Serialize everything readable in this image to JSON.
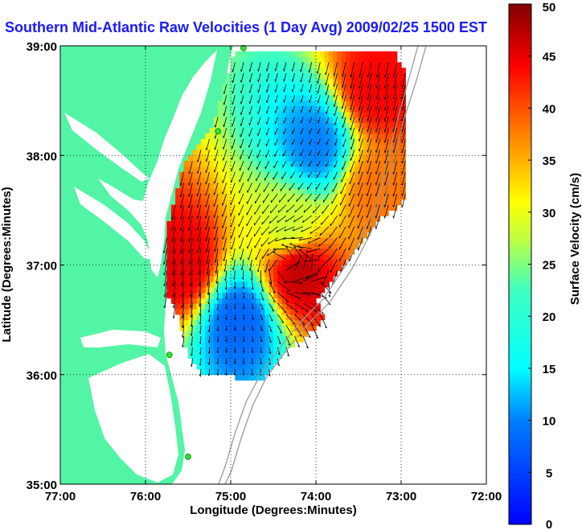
{
  "chart_data": {
    "type": "heatmap",
    "title": "Southern Mid-Atlantic Raw Velocities (1 Day Avg) 2009/02/25 1500 EST",
    "xlabel": "Longitude (Degrees:Minutes)",
    "ylabel": "Latitude (Degrees:Minutes)",
    "xlim": [
      -77,
      -72
    ],
    "ylim": [
      35,
      39
    ],
    "x_ticks": [
      -77,
      -76,
      -75,
      -74,
      -73,
      -72
    ],
    "x_tick_labels": [
      "77:00",
      "76:00",
      "75:00",
      "74:00",
      "73:00",
      "72:00"
    ],
    "y_ticks": [
      35,
      36,
      37,
      38,
      39
    ],
    "y_tick_labels": [
      "35:00",
      "36:00",
      "37:00",
      "38:00",
      "39:00"
    ],
    "grid": true,
    "colorbar": {
      "label": "Surface Velocity (cm/s)",
      "range": [
        0,
        50
      ],
      "ticks": [
        0,
        5,
        10,
        15,
        20,
        25,
        30,
        35,
        40,
        45,
        50
      ],
      "colormap": "jet"
    },
    "land_color": "#52f5a5",
    "sea_color": "#ffffff",
    "vector_color": "#000000",
    "field_centers": [
      {
        "lon": -74.2,
        "lat": 36.95,
        "speed": 47
      },
      {
        "lon": -75.55,
        "lat": 37.0,
        "speed": 45
      },
      {
        "lon": -73.3,
        "lat": 38.6,
        "speed": 44
      },
      {
        "lon": -73.3,
        "lat": 37.7,
        "speed": 38
      },
      {
        "lon": -74.3,
        "lat": 37.35,
        "speed": 28
      },
      {
        "lon": -74.0,
        "lat": 38.1,
        "speed": 10
      },
      {
        "lon": -74.9,
        "lat": 36.5,
        "speed": 8
      }
    ],
    "radar_sites": [
      {
        "lon": -74.85,
        "lat": 38.98
      },
      {
        "lon": -75.15,
        "lat": 38.22
      },
      {
        "lon": -75.72,
        "lat": 36.18
      },
      {
        "lon": -75.5,
        "lat": 35.25
      }
    ]
  }
}
